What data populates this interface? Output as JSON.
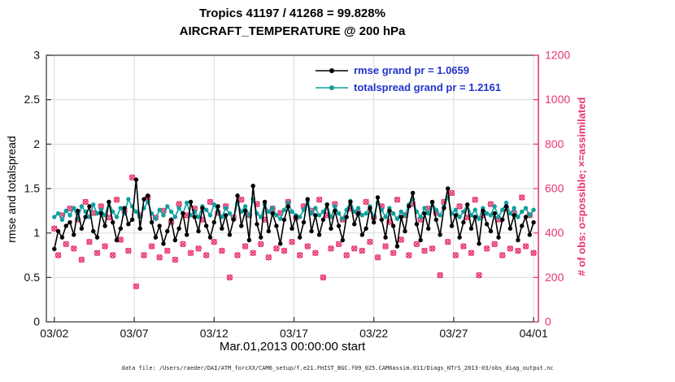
{
  "title": {
    "line1": "Tropics 41197 / 41268 = 99.828%",
    "line2": "AIRCRAFT_TEMPERATURE @ 200 hPa"
  },
  "colors": {
    "rmse": "#000000",
    "totalspread": "#0ca0a0",
    "obs": "#e8356d",
    "legend_text": "#2333cc",
    "grid": "#dcdcdc",
    "axis": "#333333"
  },
  "legend": {
    "items": [
      {
        "name": "rmse",
        "label": "rmse grand pr = 1.0659"
      },
      {
        "name": "totalspread",
        "label": "totalspread grand pr = 1.2161"
      }
    ]
  },
  "caption": "data file: /Users/raeder/DAI/ATM_forcXX/CAM6_setup/f.e21.FHIST_BGC.f09_025.CAM6assim.011/Diags_NTrS_2013-03/obs_diag_output.nc",
  "chart_data": {
    "type": "line",
    "title": "Tropics 41197 / 41268 = 99.828% | AIRCRAFT_TEMPERATURE @ 200 hPa",
    "xlabel": "Mar.01,2013 00:00:00 start",
    "x_axis": {
      "domain_days": [
        0.5,
        31.3
      ],
      "tick_days": [
        1,
        6,
        11,
        16,
        21,
        26,
        31
      ],
      "tick_labels": [
        "03/02",
        "03/07",
        "03/12",
        "03/17",
        "03/22",
        "03/27",
        "04/01"
      ]
    },
    "y_left": {
      "label": "rmse and totalspread",
      "lim": [
        0,
        3
      ],
      "ticks": [
        0,
        0.5,
        1,
        1.5,
        2,
        2.5,
        3
      ],
      "tick_labels": [
        "0",
        "0.5",
        "1",
        "1.5",
        "2",
        "2.5",
        "3"
      ]
    },
    "y_right": {
      "label": "# of obs: o=possible; ×=assimilated",
      "lim": [
        0,
        1200
      ],
      "ticks": [
        0,
        200,
        400,
        600,
        800,
        1000,
        1200
      ],
      "tick_labels": [
        "0",
        "200",
        "400",
        "600",
        "800",
        "1000",
        "1200"
      ]
    },
    "points_per_day": 4,
    "series": [
      {
        "name": "rmse",
        "axis": "left",
        "grand_mean": 1.0659,
        "values": [
          0.82,
          1.02,
          0.95,
          1.08,
          1.12,
          0.98,
          1.25,
          1.05,
          1.18,
          1.3,
          1.02,
          0.95,
          1.22,
          1.08,
          1.35,
          1.12,
          0.92,
          1.05,
          1.28,
          1.1,
          1.15,
          1.6,
          1.05,
          1.38,
          1.42,
          1.12,
          0.95,
          1.08,
          0.88,
          1.02,
          1.15,
          0.92,
          1.05,
          1.22,
          0.98,
          1.35,
          1.18,
          1.02,
          1.28,
          1.08,
          0.95,
          1.12,
          1.3,
          1.05,
          1.2,
          0.98,
          1.15,
          1.42,
          1.08,
          1.25,
          0.92,
          1.53,
          1.1,
          0.95,
          1.35,
          1.02,
          1.22,
          1.08,
          0.88,
          1.15,
          1.3,
          1.05,
          1.18,
          0.95,
          1.12,
          1.38,
          1.02,
          1.2,
          0.98,
          1.15,
          1.32,
          1.05,
          1.25,
          1.08,
          0.92,
          1.18,
          1.35,
          1.1,
          1.22,
          0.98,
          1.05,
          1.28,
          1.12,
          1.4,
          1.15,
          0.95,
          1.25,
          1.08,
          0.85,
          1.18,
          1.02,
          1.3,
          1.45,
          1.1,
          0.92,
          1.22,
          1.05,
          1.35,
          1.15,
          0.98,
          1.28,
          1.5,
          1.08,
          1.2,
          0.95,
          1.12,
          1.32,
          1.05,
          1.18,
          0.88,
          1.25,
          1.1,
          1.02,
          1.22,
          0.95,
          1.15,
          1.3,
          1.05,
          1.2,
          0.92,
          1.08,
          1.18,
          0.98,
          1.12
        ]
      },
      {
        "name": "totalspread",
        "axis": "left",
        "grand_mean": 1.2161,
        "values": [
          1.18,
          1.22,
          1.15,
          1.25,
          1.2,
          1.28,
          1.16,
          1.3,
          1.24,
          1.18,
          1.32,
          1.22,
          1.26,
          1.2,
          1.35,
          1.24,
          1.18,
          1.28,
          1.22,
          1.38,
          1.3,
          1.24,
          1.18,
          1.28,
          1.35,
          1.22,
          1.16,
          1.26,
          1.2,
          1.3,
          1.24,
          1.18,
          1.28,
          1.22,
          1.34,
          1.2,
          1.24,
          1.18,
          1.3,
          1.26,
          1.2,
          1.32,
          1.24,
          1.18,
          1.28,
          1.22,
          1.16,
          1.34,
          1.24,
          1.3,
          1.2,
          1.38,
          1.22,
          1.18,
          1.32,
          1.24,
          1.28,
          1.2,
          1.16,
          1.26,
          1.34,
          1.24,
          1.2,
          1.18,
          1.26,
          1.36,
          1.22,
          1.28,
          1.2,
          1.24,
          1.32,
          1.18,
          1.3,
          1.22,
          1.16,
          1.26,
          1.36,
          1.24,
          1.28,
          1.2,
          1.22,
          1.3,
          1.18,
          1.34,
          1.26,
          1.18,
          1.28,
          1.22,
          1.16,
          1.24,
          1.2,
          1.32,
          1.38,
          1.24,
          1.18,
          1.28,
          1.22,
          1.34,
          1.26,
          1.2,
          1.3,
          1.4,
          1.22,
          1.26,
          1.18,
          1.24,
          1.32,
          1.2,
          1.26,
          1.16,
          1.28,
          1.22,
          1.2,
          1.3,
          1.18,
          1.26,
          1.34,
          1.22,
          1.28,
          1.18,
          1.24,
          1.28,
          1.2,
          1.26
        ]
      }
    ],
    "obs_counts": {
      "name": "# of obs (o=possible, ×=assimilated, overlapping)",
      "axis": "right",
      "values": [
        420,
        300,
        480,
        350,
        510,
        330,
        460,
        280,
        540,
        360,
        490,
        310,
        520,
        340,
        470,
        300,
        550,
        370,
        500,
        320,
        650,
        160,
        480,
        300,
        560,
        340,
        470,
        290,
        500,
        320,
        450,
        280,
        530,
        350,
        480,
        310,
        510,
        330,
        460,
        300,
        540,
        360,
        490,
        320,
        520,
        200,
        470,
        300,
        550,
        340,
        480,
        310,
        530,
        350,
        460,
        290,
        510,
        330,
        490,
        320,
        540,
        360,
        470,
        300,
        520,
        340,
        500,
        310,
        550,
        200,
        480,
        330,
        530,
        350,
        460,
        300,
        510,
        330,
        490,
        320,
        540,
        360,
        470,
        290,
        520,
        340,
        450,
        310,
        550,
        370,
        480,
        300,
        530,
        350,
        460,
        320,
        510,
        330,
        490,
        210,
        540,
        360,
        580,
        300,
        520,
        340,
        470,
        310,
        550,
        210,
        480,
        330,
        530,
        350,
        460,
        300,
        510,
        330,
        490,
        320,
        560,
        340,
        480,
        310
      ]
    }
  }
}
